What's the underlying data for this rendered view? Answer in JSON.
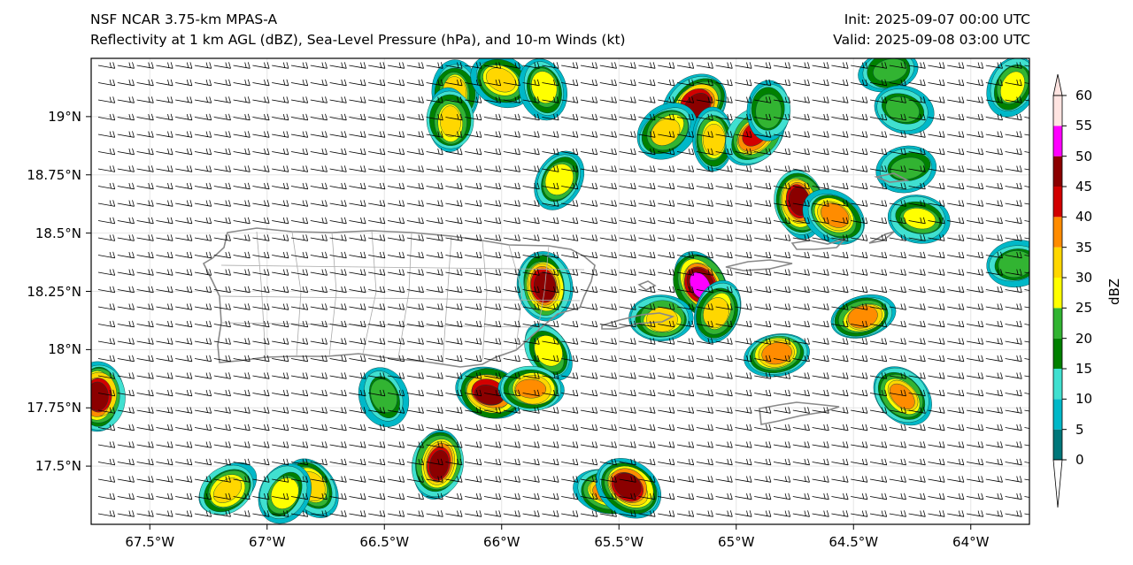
{
  "header": {
    "left_line1": "NSF NCAR 3.75-km MPAS-A",
    "left_line2": "Reflectivity at 1 km AGL (dBZ), Sea-Level Pressure (hPa), and 10-m Winds (kt)",
    "right_line1": "Init: 2025-09-07 00:00 UTC",
    "right_line2": "Valid: 2025-09-08 03:00 UTC"
  },
  "map": {
    "lon_range": [
      -67.75,
      -63.75
    ],
    "lat_range": [
      17.25,
      19.25
    ],
    "lat_ticks": [
      {
        "value": 19.0,
        "label": "19°N"
      },
      {
        "value": 18.75,
        "label": "18.75°N"
      },
      {
        "value": 18.5,
        "label": "18.5°N"
      },
      {
        "value": 18.25,
        "label": "18.25°N"
      },
      {
        "value": 18.0,
        "label": "18°N"
      },
      {
        "value": 17.75,
        "label": "17.75°N"
      },
      {
        "value": 17.5,
        "label": "17.5°N"
      }
    ],
    "lon_ticks": [
      {
        "value": -67.5,
        "label": "67.5°W"
      },
      {
        "value": -67.0,
        "label": "67°W"
      },
      {
        "value": -66.5,
        "label": "66.5°W"
      },
      {
        "value": -66.0,
        "label": "66°W"
      },
      {
        "value": -65.5,
        "label": "65.5°W"
      },
      {
        "value": -65.0,
        "label": "65°W"
      },
      {
        "value": -64.5,
        "label": "64.5°W"
      },
      {
        "value": -64.0,
        "label": "64°W"
      }
    ],
    "wind_direction_from_deg": 100,
    "storm_cells": [
      {
        "lon": -66.2,
        "lat": 19.1,
        "max_dbz": 30
      },
      {
        "lon": -66.22,
        "lat": 18.98,
        "max_dbz": 30
      },
      {
        "lon": -66.0,
        "lat": 19.15,
        "max_dbz": 30
      },
      {
        "lon": -65.82,
        "lat": 19.12,
        "max_dbz": 25
      },
      {
        "lon": -65.17,
        "lat": 19.05,
        "max_dbz": 45
      },
      {
        "lon": -65.3,
        "lat": 18.94,
        "max_dbz": 30
      },
      {
        "lon": -65.1,
        "lat": 18.9,
        "max_dbz": 30
      },
      {
        "lon": -64.92,
        "lat": 18.92,
        "max_dbz": 40
      },
      {
        "lon": -65.75,
        "lat": 18.73,
        "max_dbz": 25
      },
      {
        "lon": -64.73,
        "lat": 18.63,
        "max_dbz": 45
      },
      {
        "lon": -64.58,
        "lat": 18.57,
        "max_dbz": 35
      },
      {
        "lon": -64.22,
        "lat": 18.56,
        "max_dbz": 25
      },
      {
        "lon": -65.15,
        "lat": 18.28,
        "max_dbz": 50
      },
      {
        "lon": -65.08,
        "lat": 18.16,
        "max_dbz": 30
      },
      {
        "lon": -65.82,
        "lat": 18.27,
        "max_dbz": 45
      },
      {
        "lon": -65.32,
        "lat": 18.13,
        "max_dbz": 30
      },
      {
        "lon": -64.46,
        "lat": 18.14,
        "max_dbz": 35
      },
      {
        "lon": -64.83,
        "lat": 17.98,
        "max_dbz": 35
      },
      {
        "lon": -64.29,
        "lat": 17.8,
        "max_dbz": 35
      },
      {
        "lon": -65.8,
        "lat": 17.99,
        "max_dbz": 25
      },
      {
        "lon": -66.5,
        "lat": 17.8,
        "max_dbz": 20
      },
      {
        "lon": -66.05,
        "lat": 17.81,
        "max_dbz": 45
      },
      {
        "lon": -65.87,
        "lat": 17.83,
        "max_dbz": 35
      },
      {
        "lon": -67.72,
        "lat": 17.8,
        "max_dbz": 45
      },
      {
        "lon": -66.27,
        "lat": 17.51,
        "max_dbz": 45
      },
      {
        "lon": -65.55,
        "lat": 17.39,
        "max_dbz": 35
      },
      {
        "lon": -65.46,
        "lat": 17.41,
        "max_dbz": 45
      },
      {
        "lon": -67.17,
        "lat": 17.4,
        "max_dbz": 30
      },
      {
        "lon": -66.81,
        "lat": 17.41,
        "max_dbz": 30
      },
      {
        "lon": -66.93,
        "lat": 17.38,
        "max_dbz": 25
      },
      {
        "lon": -64.86,
        "lat": 19.03,
        "max_dbz": 20
      },
      {
        "lon": -64.35,
        "lat": 19.2,
        "max_dbz": 20
      },
      {
        "lon": -63.82,
        "lat": 19.13,
        "max_dbz": 25
      },
      {
        "lon": -64.29,
        "lat": 19.03,
        "max_dbz": 20
      },
      {
        "lon": -64.27,
        "lat": 18.78,
        "max_dbz": 20
      },
      {
        "lon": -63.81,
        "lat": 18.37,
        "max_dbz": 20
      }
    ]
  },
  "colorbar": {
    "title": "dBZ",
    "levels": [
      {
        "value": 0,
        "label": "0",
        "color": "#00777a"
      },
      {
        "value": 5,
        "label": "5",
        "color": "#00b8c8"
      },
      {
        "value": 10,
        "label": "10",
        "color": "#40e0d0"
      },
      {
        "value": 15,
        "label": "15",
        "color": "#008000"
      },
      {
        "value": 20,
        "label": "20",
        "color": "#32b432"
      },
      {
        "value": 25,
        "label": "25",
        "color": "#ffff00"
      },
      {
        "value": 30,
        "label": "30",
        "color": "#ffd700"
      },
      {
        "value": 35,
        "label": "35",
        "color": "#ff8c00"
      },
      {
        "value": 40,
        "label": "40",
        "color": "#d20000"
      },
      {
        "value": 45,
        "label": "45",
        "color": "#8b0000"
      },
      {
        "value": 50,
        "label": "50",
        "color": "#ff00ff"
      },
      {
        "value": 55,
        "label": "55",
        "color": "#ffe4e1"
      },
      {
        "value": 60,
        "label": "60",
        "color": "#ffe4e1"
      }
    ]
  }
}
